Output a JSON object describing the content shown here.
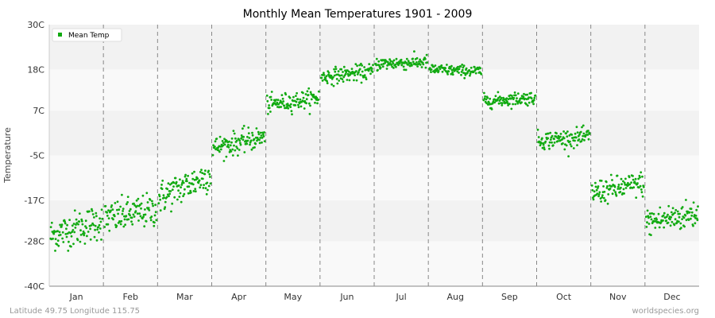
{
  "chart_data": {
    "type": "scatter",
    "title": "Monthly Mean Temperatures 1901 - 2009",
    "xlabel": "",
    "ylabel": "Temperature",
    "categories": [
      "Jan",
      "Feb",
      "Mar",
      "Apr",
      "May",
      "Jun",
      "Jul",
      "Aug",
      "Sep",
      "Oct",
      "Nov",
      "Dec"
    ],
    "y_ticks": [
      -40,
      -28,
      -17,
      -5,
      7,
      18,
      30
    ],
    "y_tick_labels": [
      "-40C",
      "-28C",
      "-17C",
      "-5C",
      "7C",
      "18C",
      "30C"
    ],
    "ylim": [
      -40,
      30
    ],
    "grid": true,
    "legend_position": "top-left",
    "series": [
      {
        "name": "Mean Temp",
        "color": "#11aa11",
        "monthly_summary": [
          {
            "month": "Jan",
            "start_mean": -26.5,
            "end_mean": -22.5,
            "spread": 3.2,
            "min": -30.5,
            "max": -19.0
          },
          {
            "month": "Feb",
            "start_mean": -22.0,
            "end_mean": -19.5,
            "spread": 3.0,
            "min": -27.0,
            "max": -13.5
          },
          {
            "month": "Mar",
            "start_mean": -16.5,
            "end_mean": -10.0,
            "spread": 3.0,
            "min": -20.0,
            "max": -7.5
          },
          {
            "month": "Apr",
            "start_mean": -3.0,
            "end_mean": 0.0,
            "spread": 2.0,
            "min": -6.5,
            "max": 4.0
          },
          {
            "month": "May",
            "start_mean": 8.5,
            "end_mean": 10.5,
            "spread": 1.6,
            "min": 5.0,
            "max": 13.0
          },
          {
            "month": "Jun",
            "start_mean": 16.0,
            "end_mean": 17.5,
            "spread": 1.4,
            "min": 13.0,
            "max": 20.5
          },
          {
            "month": "Jul",
            "start_mean": 19.5,
            "end_mean": 20.0,
            "spread": 1.2,
            "min": 17.5,
            "max": 23.5
          },
          {
            "month": "Aug",
            "start_mean": 18.0,
            "end_mean": 17.5,
            "spread": 1.0,
            "min": 15.5,
            "max": 20.5
          },
          {
            "month": "Sep",
            "start_mean": 9.5,
            "end_mean": 10.5,
            "spread": 1.2,
            "min": 7.0,
            "max": 13.5
          },
          {
            "month": "Oct",
            "start_mean": -1.0,
            "end_mean": 0.0,
            "spread": 1.6,
            "min": -5.5,
            "max": 3.0
          },
          {
            "month": "Nov",
            "start_mean": -15.0,
            "end_mean": -12.5,
            "spread": 2.2,
            "min": -19.5,
            "max": -8.5
          },
          {
            "month": "Dec",
            "start_mean": -23.0,
            "end_mean": -20.5,
            "spread": 2.6,
            "min": -27.5,
            "max": -15.5
          }
        ]
      }
    ]
  },
  "footer": {
    "location": "Latitude 49.75 Longitude 115.75",
    "source": "worldspecies.org"
  }
}
